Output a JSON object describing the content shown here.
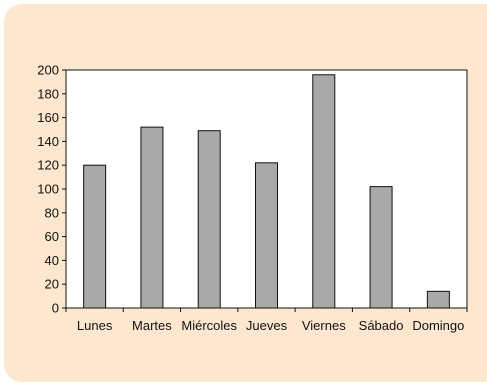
{
  "colors": {
    "panel_background": "#fde8cf",
    "bar_fill": "#a9a9a9",
    "bar_stroke": "#111111",
    "plot_background": "#ffffff"
  },
  "chart_data": {
    "type": "bar",
    "categories": [
      "Lunes",
      "Martes",
      "Miércoles",
      "Jueves",
      "Viernes",
      "Sábado",
      "Domingo"
    ],
    "values": [
      120,
      152,
      149,
      122,
      196,
      102,
      14
    ],
    "ylim": [
      0,
      200
    ],
    "yticks": [
      0,
      20,
      40,
      60,
      80,
      100,
      120,
      140,
      160,
      180,
      200
    ],
    "grid": false,
    "legend": "none"
  }
}
